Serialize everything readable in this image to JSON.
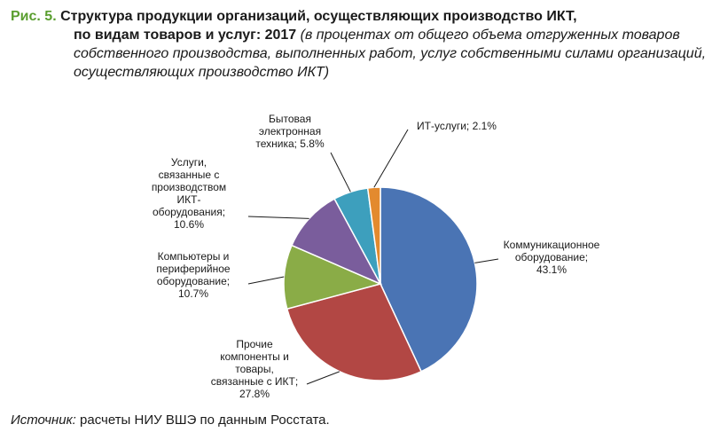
{
  "figure": {
    "number": "Рис. 5.",
    "title": "Структура продукции организаций, осуществляющих производство ИКТ,",
    "title_cont": "по видам товаров и услуг: 2017",
    "subtitle": "(в процентах от общего объема отгруженных товаров собственного производства, выполненных работ, услуг собственными силами организаций, осуществляющих производство ИКТ)"
  },
  "source": {
    "label": "Источник:",
    "text": "расчеты НИУ ВШЭ по данным Росстата."
  },
  "chart_data": {
    "type": "pie",
    "start": "12 o'clock",
    "direction": "clockwise",
    "slices": [
      {
        "lines": [
          "Коммуникационное",
          "оборудование;",
          "43.1%"
        ],
        "name": "Коммуникационное оборудование",
        "value": 43.1,
        "color": "#4a74b4"
      },
      {
        "lines": [
          "Прочие",
          "компоненты и",
          "товары,",
          "связанные с ИКТ;",
          "27.8%"
        ],
        "name": "Прочие компоненты и товары, связанные с ИКТ",
        "value": 27.8,
        "color": "#b24744"
      },
      {
        "lines": [
          "Компьютеры и",
          "периферийное",
          "оборудование;",
          "10.7%"
        ],
        "name": "Компьютеры и периферийное оборудование",
        "value": 10.7,
        "color": "#8aac47"
      },
      {
        "lines": [
          "Услуги,",
          "связанные с",
          "производством",
          "ИКТ-",
          "оборудования;",
          "10.6%"
        ],
        "name": "Услуги, связанные с производством ИКТ-оборудования",
        "value": 10.6,
        "color": "#7a5d9c"
      },
      {
        "lines": [
          "Бытовая",
          "электронная",
          "техника; 5.8%"
        ],
        "name": "Бытовая электронная техника",
        "value": 5.8,
        "color": "#3d9fbd"
      },
      {
        "lines": [
          "ИТ-услуги; 2.1%"
        ],
        "name": "ИТ-услуги",
        "value": 2.1,
        "color": "#e38a2e"
      }
    ]
  }
}
